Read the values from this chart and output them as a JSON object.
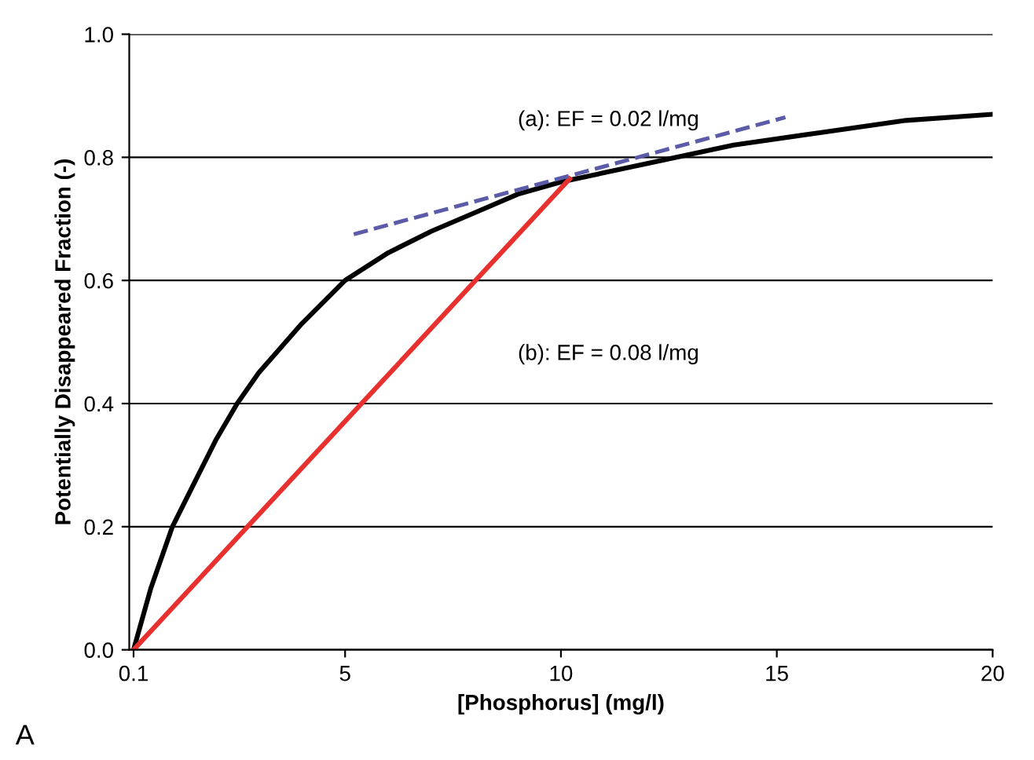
{
  "chart_data": {
    "type": "line",
    "xlabel": "[Phosphorus] (mg/l)",
    "ylabel": "Potentially Disappeared Fraction (-)",
    "xlim": [
      0,
      20
    ],
    "xticks": [
      0.1,
      5,
      10,
      15,
      20
    ],
    "ylim": [
      0,
      1.0
    ],
    "yticks": [
      {
        "value": 0,
        "label": "0.0"
      },
      0.2,
      0.4,
      0.6,
      0.8,
      {
        "value": 1,
        "label": "1.0"
      }
    ],
    "grid": "y",
    "legend": false,
    "series": [
      {
        "color": "#000000",
        "line_style": "solid",
        "x": [
          0.1,
          0.5,
          1,
          1.5,
          2,
          2.5,
          3,
          4,
          5,
          6,
          7,
          8,
          9,
          10,
          12,
          14,
          16,
          18,
          20
        ],
        "values": [
          0,
          0.1,
          0.2,
          0.27,
          0.34,
          0.4,
          0.45,
          0.53,
          0.6,
          0.645,
          0.68,
          0.71,
          0.74,
          0.76,
          0.79,
          0.82,
          0.84,
          0.86,
          0.87
        ]
      },
      {
        "color": "#e8312f",
        "line_style": "solid",
        "x": [
          0.1,
          10.2
        ],
        "values": [
          0,
          0.765
        ]
      },
      {
        "color": "#5b5ba8",
        "line_style": "dashed",
        "x": [
          5.2,
          15.2
        ],
        "values": [
          0.675,
          0.865
        ]
      }
    ],
    "annotations": [
      "(a): EF = 0.02 l/mg",
      "(b): EF = 0.08 l/mg",
      "A"
    ]
  }
}
